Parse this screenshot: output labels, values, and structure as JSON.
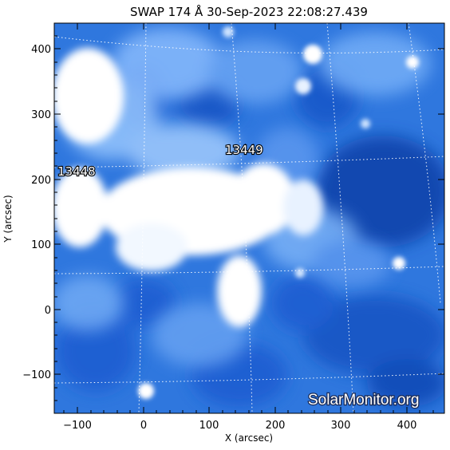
{
  "title": "SWAP 174 Å 30-Sep-2023 22:08:27.439",
  "xlabel": "X (arcsec)",
  "ylabel": "Y (arcsec)",
  "x_ticks": [
    "−100",
    "0",
    "100",
    "200",
    "300",
    "400"
  ],
  "y_ticks": [
    "400",
    "300",
    "200",
    "100",
    "0",
    "−100"
  ],
  "active_regions": [
    "13448",
    "13449"
  ],
  "watermark": "SolarMonitor.org",
  "colors": {
    "colormap_dark": "#0b3fa8",
    "colormap_mid": "#3f86e6",
    "colormap_bright": "#ffffff"
  }
}
